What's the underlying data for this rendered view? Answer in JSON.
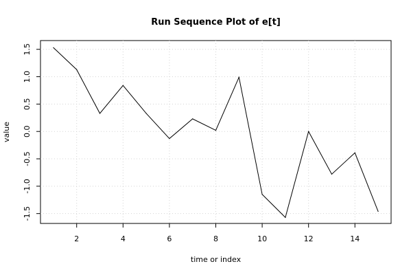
{
  "chart_data": {
    "type": "line",
    "title": "Run Sequence Plot of e[t]",
    "xlabel": "time or index",
    "ylabel": "value",
    "x": [
      1,
      2,
      3,
      4,
      5,
      6,
      7,
      8,
      9,
      10,
      11,
      12,
      13,
      14,
      15
    ],
    "series": [
      {
        "values": [
          1.53,
          1.13,
          0.33,
          0.84,
          0.33,
          -0.13,
          0.23,
          0.02,
          0.99,
          -1.15,
          -1.57,
          0.0,
          -0.78,
          -0.39,
          -1.46
        ]
      }
    ],
    "xlim": [
      0.44,
      15.56
    ],
    "ylim": [
      -1.68,
      1.66
    ],
    "xticks": [
      "2",
      "4",
      "6",
      "8",
      "10",
      "12",
      "14"
    ],
    "yticks": [
      "-1.5",
      "-1.0",
      "-0.5",
      "0.0",
      "0.5",
      "1.0",
      "1.5"
    ],
    "grid": true,
    "line_color": "#000000",
    "grid_color": "#d3d3d3"
  }
}
